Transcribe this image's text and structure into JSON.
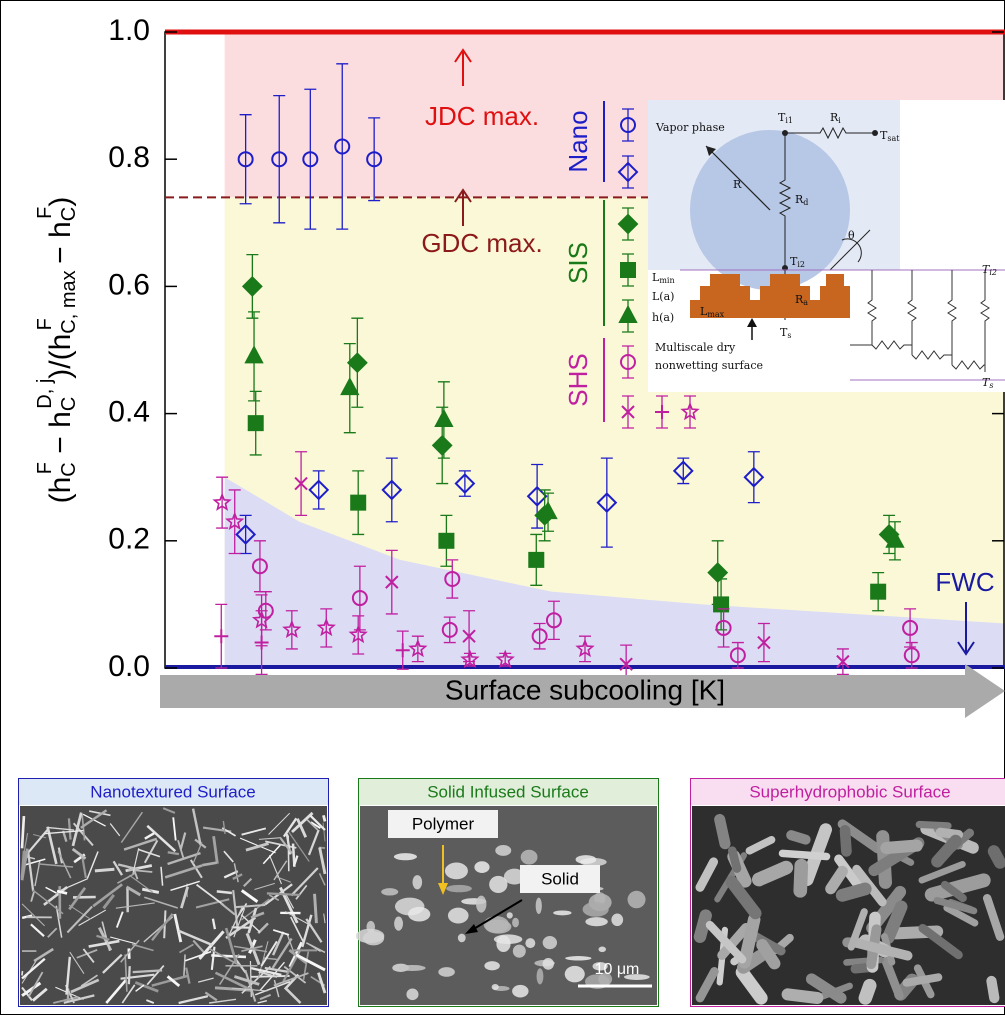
{
  "chart_data": {
    "type": "scatter",
    "ylabel": [
      "(h",
      "C",
      "F",
      " − h",
      "C",
      "D, j",
      ")/(h",
      "C, max",
      "F",
      " − h",
      "C",
      "F",
      ")"
    ],
    "xlabel": "Surface subcooling [K]",
    "xlim": [
      0,
      100
    ],
    "ylim": [
      0,
      1
    ],
    "yticks": [
      {
        "value": 0,
        "label": "0.0"
      },
      {
        "value": 0.2,
        "label": "0.2"
      },
      {
        "value": 0.4,
        "label": "0.4"
      },
      {
        "value": 0.6,
        "label": "0.6"
      },
      {
        "value": 0.8,
        "label": "0.8"
      },
      {
        "value": 1,
        "label": "1.0"
      }
    ],
    "region_start_x": 7.1,
    "jdc_max": {
      "label": "JDC max.",
      "value": 1,
      "color": "#e01010"
    },
    "gdc_max": {
      "label": "GDC max.",
      "value": 0.74,
      "color": "#8b1a1a"
    },
    "fwc": {
      "label": "FWC",
      "value": 0,
      "color": "#1a1aa0",
      "x": [
        7.1,
        16,
        28,
        46,
        64,
        100
      ],
      "values": [
        0.3,
        0.23,
        0.17,
        0.12,
        0.1,
        0.07
      ]
    },
    "series": [
      {
        "name": "Nano",
        "marker": "circle",
        "filled": false,
        "color": "#1e1ec8",
        "x": [
          9.6,
          13.6,
          17.3,
          21.1,
          24.9
        ],
        "values": [
          0.8,
          0.8,
          0.8,
          0.82,
          0.8
        ],
        "errors": [
          0.07,
          0.1,
          0.11,
          0.13,
          0.065
        ]
      },
      {
        "name": "Nano",
        "marker": "diamond",
        "filled": false,
        "color": "#1e1ec8",
        "x": [
          9.6,
          18.3,
          27.0,
          35.7,
          44.3,
          52.6,
          61.7,
          70.1
        ],
        "values": [
          0.21,
          0.28,
          0.28,
          0.29,
          0.27,
          0.26,
          0.31,
          0.3
        ],
        "errors": [
          0.03,
          0.03,
          0.05,
          0.02,
          0.05,
          0.07,
          0.02,
          0.04
        ]
      },
      {
        "name": "SIS",
        "marker": "diamond",
        "filled": true,
        "color": "#1a7a1a",
        "x": [
          10.4,
          22.9,
          33.0,
          45.2,
          65.8,
          86.2
        ],
        "values": [
          0.6,
          0.48,
          0.35,
          0.24,
          0.15,
          0.21
        ],
        "errors": [
          0.05,
          0.07,
          0.06,
          0.04,
          0.05,
          0.03
        ]
      },
      {
        "name": "SIS",
        "marker": "square",
        "filled": true,
        "color": "#1a7a1a",
        "x": [
          10.8,
          23.0,
          33.5,
          44.2,
          66.2,
          84.9
        ],
        "values": [
          0.385,
          0.26,
          0.2,
          0.17,
          0.1,
          0.12
        ],
        "errors": [
          0.05,
          0.05,
          0.04,
          0.04,
          0.04,
          0.03
        ]
      },
      {
        "name": "SIS",
        "marker": "triangle",
        "filled": true,
        "color": "#1a7a1a",
        "x": [
          10.6,
          22.0,
          33.2,
          45.6,
          86.9
        ],
        "values": [
          0.49,
          0.44,
          0.39,
          0.245,
          0.2
        ],
        "errors": [
          0.07,
          0.07,
          0.06,
          0.03,
          0.03
        ]
      },
      {
        "name": "SHS",
        "marker": "circle",
        "filled": false,
        "color": "#c020a0",
        "x": [
          11.3,
          12.0,
          23.2,
          33.9,
          34.2,
          44.6,
          46.3,
          66.5,
          68.2,
          88.7,
          88.9
        ],
        "values": [
          0.16,
          0.09,
          0.11,
          0.06,
          0.14,
          0.05,
          0.075,
          0.063,
          0.02,
          0.063,
          0.02
        ],
        "errors": [
          0.04,
          0.03,
          0.05,
          0.02,
          0.03,
          0.02,
          0.03,
          0.03,
          0.02,
          0.03,
          0.02
        ]
      },
      {
        "name": "SHS",
        "marker": "x",
        "filled": false,
        "color": "#c020a0",
        "x": [
          16.2,
          27.0,
          36.2,
          54.9,
          71.3,
          80.7
        ],
        "values": [
          0.29,
          0.135,
          0.05,
          0.006,
          0.04,
          0.01
        ],
        "errors": [
          0.05,
          0.05,
          0.04,
          0.03,
          0.03,
          0.02
        ]
      },
      {
        "name": "SHS",
        "marker": "plus",
        "filled": false,
        "color": "#c020a0",
        "x": [
          6.7,
          11.5,
          28.3
        ],
        "values": [
          0.05,
          0.04,
          0.028
        ],
        "errors": [
          0.05,
          0.05,
          0.03
        ]
      },
      {
        "name": "SHS",
        "marker": "star",
        "filled": false,
        "color": "#c020a0",
        "x": [
          6.8,
          8.3,
          11.5,
          15.1,
          19.2,
          23.0,
          30.1,
          36.3,
          40.5,
          50.0
        ],
        "values": [
          0.26,
          0.23,
          0.075,
          0.06,
          0.063,
          0.052,
          0.03,
          0.013,
          0.013,
          0.03
        ],
        "errors": [
          0.04,
          0.05,
          0.04,
          0.03,
          0.03,
          0.03,
          0.02,
          0.01,
          0.01,
          0.02
        ]
      }
    ]
  },
  "inset": {
    "labels": [
      "Vapor phase",
      "R",
      "T",
      "i1",
      "R",
      "i",
      "T",
      "sat",
      "R",
      "d",
      "θ",
      "T",
      "i2",
      "T",
      "i2",
      "L",
      "min",
      "L(a)",
      "h(a)",
      "L",
      "max",
      "R",
      "a",
      "T",
      "s",
      "T",
      "s",
      "Multiscale dry",
      "nonwetting surface"
    ]
  },
  "panels": [
    {
      "title": "Nanotextured Surface"
    },
    {
      "title": "Solid Infused Surface",
      "labels": [
        "Polymer",
        "Solid",
        "10 μm"
      ]
    },
    {
      "title": "Superhydrophobic Surface"
    }
  ]
}
